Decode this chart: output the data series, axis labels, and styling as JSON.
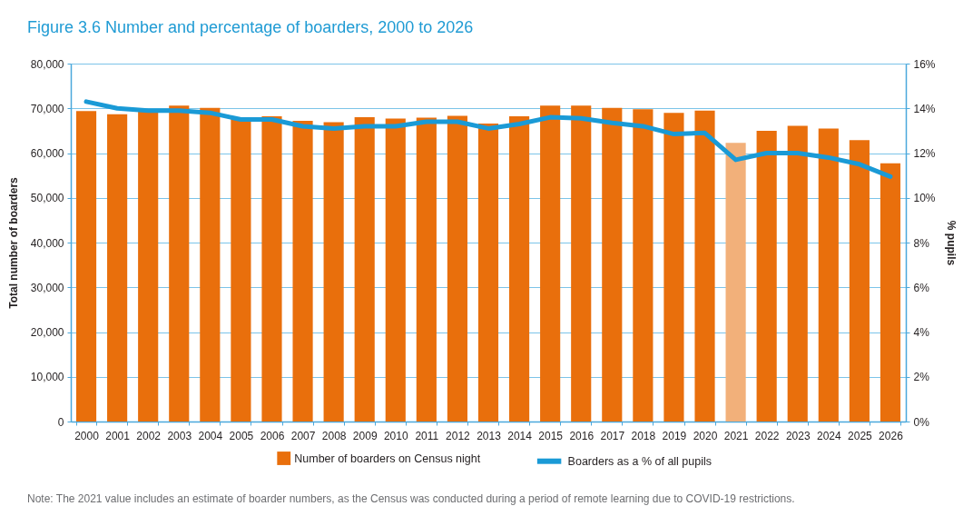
{
  "chart_data": {
    "type": "bar",
    "title": "Figure 3.6 Number and percentage of boarders, 2000 to 2026",
    "ylabel": "Total number of boarders",
    "y2label": "% pupils",
    "categories": [
      "2000",
      "2001",
      "2002",
      "2003",
      "2004",
      "2005",
      "2006",
      "2007",
      "2008",
      "2009",
      "2010",
      "2011",
      "2012",
      "2013",
      "2014",
      "2015",
      "2016",
      "2017",
      "2018",
      "2019",
      "2020",
      "2021",
      "2022",
      "2023",
      "2024",
      "2025",
      "2026"
    ],
    "series": [
      {
        "name": "Number of boarders on Census night",
        "color": "#e96f0c",
        "colors": [
          "#e96f0c",
          "#e96f0c",
          "#e96f0c",
          "#e96f0c",
          "#e96f0c",
          "#e96f0c",
          "#e96f0c",
          "#e96f0c",
          "#e96f0c",
          "#e96f0c",
          "#e96f0c",
          "#e96f0c",
          "#e96f0c",
          "#e96f0c",
          "#e96f0c",
          "#e96f0c",
          "#e96f0c",
          "#e96f0c",
          "#e96f0c",
          "#e96f0c",
          "#e96f0c",
          "#f2b07a",
          "#e96f0c",
          "#e96f0c",
          "#e96f0c",
          "#e96f0c",
          "#e96f0c"
        ],
        "values": [
          69400,
          68700,
          69500,
          70600,
          70100,
          68000,
          68200,
          67200,
          66900,
          68000,
          67700,
          67900,
          68300,
          66600,
          68200,
          70600,
          70600,
          70100,
          69800,
          69000,
          69500,
          62300,
          65000,
          66100,
          65500,
          62900,
          57700
        ]
      },
      {
        "name": "Boarders as a % of all pupils",
        "type": "line",
        "axis": "y2",
        "color": "#1a9ad6",
        "values": [
          14.3,
          14.0,
          13.9,
          13.9,
          13.8,
          13.5,
          13.5,
          13.2,
          13.1,
          13.2,
          13.2,
          13.4,
          13.4,
          13.1,
          13.3,
          13.6,
          13.55,
          13.35,
          13.2,
          12.85,
          12.9,
          11.7,
          12.0,
          12.0,
          11.8,
          11.5,
          10.95
        ]
      }
    ],
    "ylim": [
      0,
      80000
    ],
    "yticks": [
      0,
      {
        "value": 10000,
        "label": "10,000"
      },
      {
        "value": 20000,
        "label": "20,000"
      },
      {
        "value": 30000,
        "label": "30,000"
      },
      {
        "value": 40000,
        "label": "40,000"
      },
      {
        "value": 50000,
        "label": "50,000"
      },
      {
        "value": 60000,
        "label": "60,000"
      },
      {
        "value": 70000,
        "label": "70,000"
      },
      {
        "value": 80000,
        "label": "80,000"
      }
    ],
    "y2lim": [
      0,
      16
    ],
    "y2ticks": [
      {
        "value": 0,
        "label": "0%"
      },
      {
        "value": 2,
        "label": "2%"
      },
      {
        "value": 4,
        "label": "4%"
      },
      {
        "value": 6,
        "label": "6%"
      },
      {
        "value": 8,
        "label": "8%"
      },
      {
        "value": 10,
        "label": "10%"
      },
      {
        "value": 12,
        "label": "12%"
      },
      {
        "value": 14,
        "label": "14%"
      },
      {
        "value": 16,
        "label": "16%"
      }
    ],
    "grid": "y",
    "legend": "bottom",
    "marker": "none",
    "line_style": "solid",
    "annotations": [
      "Note: The 2021 value includes an estimate of boarder numbers, as the Census was conducted during a period of remote learning due to COVID-19 restrictions."
    ]
  }
}
